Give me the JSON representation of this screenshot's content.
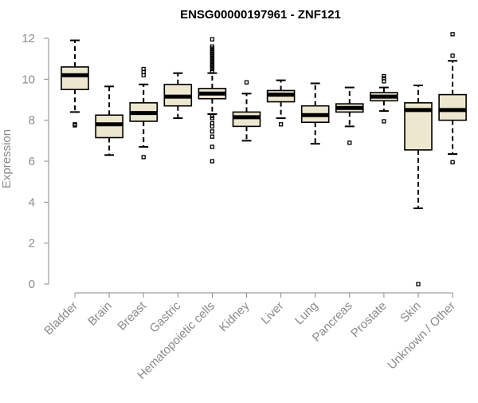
{
  "chart_data": {
    "type": "boxplot",
    "title": "ENSG00000197961 - ZNF121",
    "xlabel": "",
    "ylabel": "Expression",
    "ylim": [
      0,
      12
    ],
    "yticks": [
      0,
      2,
      4,
      6,
      8,
      10,
      12
    ],
    "grid": false,
    "legend": "none",
    "colors": {
      "box_fill": "#ede7cf",
      "box_stroke": "#000000",
      "axis": "#8a8a8a",
      "title": "#000000"
    },
    "categories": [
      "Bladder",
      "Brain",
      "Breast",
      "Gastric",
      "Hematopoietic cells",
      "Kidney",
      "Liver",
      "Lung",
      "Pancreas",
      "Prostate",
      "Skin",
      "Unknown / Other"
    ],
    "boxes": [
      {
        "category": "Bladder",
        "whisker_low": 8.4,
        "q1": 9.5,
        "median": 10.2,
        "q3": 10.6,
        "whisker_high": 11.9,
        "outliers": [
          7.75,
          7.8
        ]
      },
      {
        "category": "Brain",
        "whisker_low": 6.3,
        "q1": 7.15,
        "median": 7.8,
        "q3": 8.25,
        "whisker_high": 9.65,
        "outliers": []
      },
      {
        "category": "Breast",
        "whisker_low": 6.7,
        "q1": 7.95,
        "median": 8.35,
        "q3": 8.85,
        "whisker_high": 9.75,
        "outliers": [
          6.2,
          10.2,
          10.35,
          10.5
        ]
      },
      {
        "category": "Gastric",
        "whisker_low": 8.1,
        "q1": 8.7,
        "median": 9.15,
        "q3": 9.75,
        "whisker_high": 10.3,
        "outliers": []
      },
      {
        "category": "Hematopoietic cells",
        "whisker_low": 8.3,
        "q1": 9.05,
        "median": 9.3,
        "q3": 9.55,
        "whisker_high": 10.3,
        "outliers": [
          6.0,
          6.7,
          7.2,
          7.45,
          7.7,
          7.85,
          8.1,
          8.2,
          10.4,
          10.5,
          10.6,
          10.7,
          10.8,
          10.9,
          11.0,
          11.1,
          11.2,
          11.3,
          11.4,
          11.5,
          11.6,
          11.95
        ]
      },
      {
        "category": "Kidney",
        "whisker_low": 7.0,
        "q1": 7.7,
        "median": 8.15,
        "q3": 8.4,
        "whisker_high": 9.3,
        "outliers": [
          9.85
        ]
      },
      {
        "category": "Liver",
        "whisker_low": 8.1,
        "q1": 8.9,
        "median": 9.25,
        "q3": 9.45,
        "whisker_high": 9.95,
        "outliers": [
          7.8
        ]
      },
      {
        "category": "Lung",
        "whisker_low": 6.85,
        "q1": 7.9,
        "median": 8.25,
        "q3": 8.7,
        "whisker_high": 9.8,
        "outliers": []
      },
      {
        "category": "Pancreas",
        "whisker_low": 7.7,
        "q1": 8.4,
        "median": 8.6,
        "q3": 8.8,
        "whisker_high": 9.6,
        "outliers": [
          6.9
        ]
      },
      {
        "category": "Prostate",
        "whisker_low": 8.45,
        "q1": 8.95,
        "median": 9.15,
        "q3": 9.35,
        "whisker_high": 9.6,
        "outliers": [
          7.95,
          9.9,
          10.05,
          10.15
        ]
      },
      {
        "category": "Skin",
        "whisker_low": 3.7,
        "q1": 6.55,
        "median": 8.5,
        "q3": 8.85,
        "whisker_high": 9.7,
        "outliers": [
          0.0
        ]
      },
      {
        "category": "Unknown / Other",
        "whisker_low": 6.35,
        "q1": 8.0,
        "median": 8.5,
        "q3": 9.25,
        "whisker_high": 10.9,
        "outliers": [
          5.95,
          11.15,
          12.2
        ]
      }
    ]
  }
}
